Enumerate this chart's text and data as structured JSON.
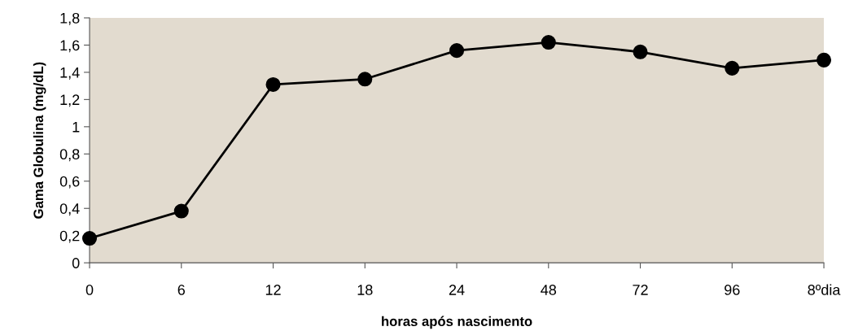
{
  "chart_data": {
    "type": "line",
    "xlabel": "horas após nascimento",
    "ylabel": "Gama Globulina (mg/dL)",
    "categories": [
      "0",
      "6",
      "12",
      "18",
      "24",
      "48",
      "72",
      "96",
      "8ºdia"
    ],
    "series": [
      {
        "color": "#000000",
        "values": [
          0.18,
          0.38,
          1.31,
          1.35,
          1.56,
          1.62,
          1.55,
          1.43,
          1.49
        ]
      }
    ],
    "ylim": [
      0,
      1.8
    ],
    "yticks": [
      0,
      {
        "value": 0.2,
        "label": "0,2"
      },
      {
        "value": 0.4,
        "label": "0,4"
      },
      {
        "value": 0.6,
        "label": "0,6"
      },
      {
        "value": 0.8,
        "label": "0,8"
      },
      1,
      {
        "value": 1.2,
        "label": "1,2"
      },
      {
        "value": 1.4,
        "label": "1,4"
      },
      {
        "value": 1.6,
        "label": "1,6"
      },
      {
        "value": 1.8,
        "label": "1,8"
      }
    ],
    "marker": "circle",
    "line_style": "solid",
    "grid": false,
    "legend": false
  }
}
